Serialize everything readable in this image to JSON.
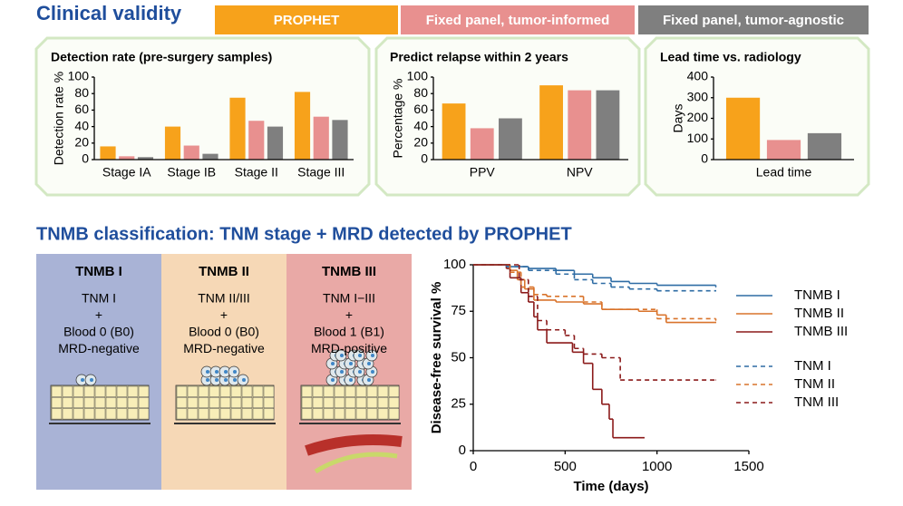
{
  "header": {
    "title": "Clinical validity"
  },
  "section_title": "TNMB classification: TNM stage + MRD detected by PROPHET",
  "tnmb_panels": [
    {
      "title": "TNMB I",
      "lines": [
        "TNM I",
        "+",
        "Blood 0 (B0)",
        "MRD-negative"
      ]
    },
    {
      "title": "TNMB II",
      "lines": [
        "TNM II/III",
        "+",
        "Blood 0 (B0)",
        "MRD-negative"
      ]
    },
    {
      "title": "TNMB III",
      "lines": [
        "TNM I−III",
        "+",
        "Blood 1 (B1)",
        "MRD-positive"
      ]
    }
  ],
  "chart_data": [
    {
      "type": "bar",
      "title": "Detection rate (pre-surgery samples)",
      "ylabel": "Detection rate %",
      "categories": [
        "Stage IA",
        "Stage IB",
        "Stage II",
        "Stage III"
      ],
      "series": [
        {
          "name": "PROPHET",
          "color": "#f7a21b",
          "values": [
            16,
            40,
            75,
            82
          ]
        },
        {
          "name": "Fixed panel, tumor-informed",
          "color": "#e8908f",
          "values": [
            4,
            17,
            47,
            52
          ]
        },
        {
          "name": "Fixed panel, tumor-agnostic",
          "color": "#7f7f7f",
          "values": [
            3,
            7,
            40,
            48
          ]
        }
      ],
      "ylim": [
        0,
        100
      ],
      "yticks": [
        0,
        20,
        40,
        60,
        80,
        100
      ]
    },
    {
      "type": "bar",
      "title": "Predict relapse within 2 years",
      "ylabel": "Percentage %",
      "categories": [
        "PPV",
        "NPV"
      ],
      "series": [
        {
          "color": "#f7a21b",
          "values": [
            68,
            90
          ]
        },
        {
          "color": "#e8908f",
          "values": [
            38,
            84
          ]
        },
        {
          "color": "#7f7f7f",
          "values": [
            50,
            84
          ]
        }
      ],
      "ylim": [
        0,
        100
      ],
      "yticks": [
        0,
        20,
        40,
        60,
        80,
        100
      ]
    },
    {
      "type": "bar",
      "title": "Lead time vs. radiology",
      "ylabel": "Days",
      "categories": [
        "Lead time"
      ],
      "series": [
        {
          "color": "#f7a21b",
          "values": [
            300
          ]
        },
        {
          "color": "#e8908f",
          "values": [
            95
          ]
        },
        {
          "color": "#7f7f7f",
          "values": [
            128
          ]
        }
      ],
      "ylim": [
        0,
        400
      ],
      "yticks": [
        0,
        100,
        200,
        300,
        400
      ]
    },
    {
      "type": "line",
      "step": true,
      "xlabel": "Time (days)",
      "ylabel": "Disease-free survival %",
      "xlim": [
        0,
        1500
      ],
      "xticks": [
        0,
        500,
        1000,
        1500
      ],
      "ylim": [
        0,
        100
      ],
      "yticks": [
        0,
        25,
        50,
        75,
        100
      ],
      "series": [
        {
          "name": "TNMB I",
          "color": "#2e6ca4",
          "dashed": false,
          "x": [
            0,
            180,
            300,
            450,
            550,
            650,
            750,
            850,
            1000,
            1320
          ],
          "values": [
            100,
            99,
            98,
            97,
            95,
            93,
            91,
            90,
            89,
            88
          ]
        },
        {
          "name": "TNMB II",
          "color": "#d9732b",
          "dashed": false,
          "x": [
            0,
            200,
            240,
            280,
            330,
            450,
            600,
            700,
            900,
            1000,
            1050,
            1320
          ],
          "values": [
            100,
            97,
            92,
            87,
            81,
            80,
            79,
            76,
            75,
            73,
            69,
            69
          ]
        },
        {
          "name": "TNMB III",
          "color": "#8b1a1a",
          "dashed": false,
          "x": [
            0,
            180,
            200,
            260,
            300,
            330,
            350,
            400,
            540,
            600,
            650,
            700,
            740,
            760,
            930
          ],
          "values": [
            100,
            98,
            93,
            85,
            80,
            72,
            65,
            58,
            53,
            47,
            33,
            25,
            17,
            7,
            7
          ]
        },
        {
          "name": "TNM I",
          "color": "#2e6ca4",
          "dashed": true,
          "x": [
            0,
            180,
            300,
            450,
            550,
            650,
            750,
            850,
            1000,
            1320
          ],
          "values": [
            100,
            99,
            97,
            95,
            92,
            90,
            88,
            87,
            86,
            86
          ]
        },
        {
          "name": "TNM II",
          "color": "#d9732b",
          "dashed": true,
          "x": [
            0,
            200,
            260,
            330,
            400,
            600,
            700,
            1000,
            1320
          ],
          "values": [
            100,
            96,
            88,
            84,
            83,
            80,
            76,
            71,
            70
          ]
        },
        {
          "name": "TNM III",
          "color": "#8b1a1a",
          "dashed": true,
          "x": [
            0,
            250,
            300,
            350,
            400,
            500,
            550,
            600,
            700,
            800,
            1320
          ],
          "values": [
            100,
            92,
            83,
            70,
            65,
            62,
            55,
            52,
            50,
            38,
            38
          ]
        }
      ]
    }
  ]
}
